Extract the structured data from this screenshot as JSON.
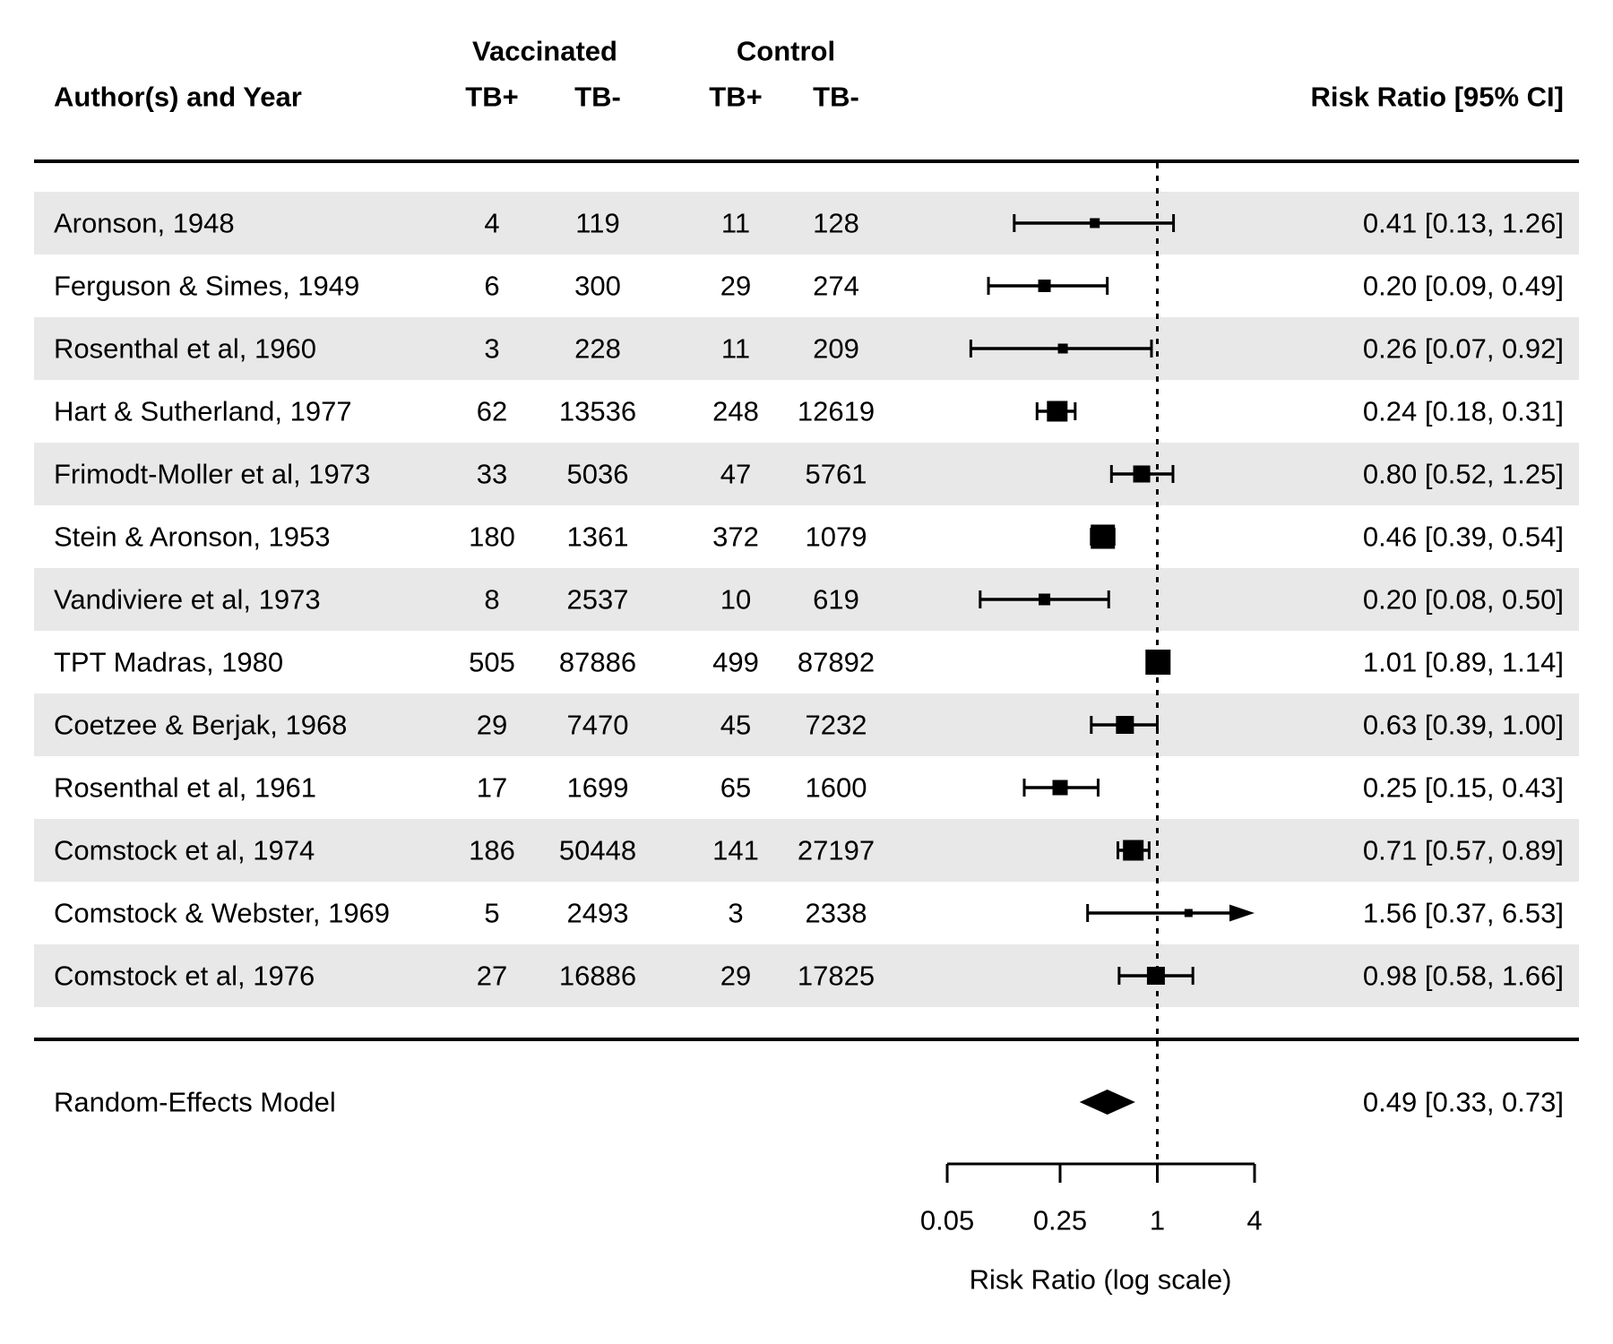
{
  "header": {
    "group1_label": "Vaccinated",
    "group2_label": "Control",
    "author_col_label": "Author(s) and Year",
    "sub_cols": [
      "TB+",
      "TB-",
      "TB+",
      "TB-"
    ],
    "rr_col_label": "Risk Ratio [95% CI]"
  },
  "summary": {
    "label": "Random-Effects Model",
    "annotation": "0.49 [0.33, 0.73]",
    "rr": 0.49,
    "ci_lo": 0.33,
    "ci_hi": 0.73
  },
  "axis": {
    "tick_labels": [
      "0.05",
      "0.25",
      "1",
      "4"
    ],
    "tick_values": [
      0.05,
      0.25,
      1,
      4
    ],
    "xlabel": "Risk Ratio (log scale)",
    "reference_value": 1,
    "scale": "log"
  },
  "colors": {
    "ink": "#000000",
    "stripe": "#e8e8e8",
    "background": "#ffffff"
  },
  "chart_data": {
    "type": "forest",
    "x_scale": "log",
    "xlabel": "Risk Ratio (log scale)",
    "axis_range": [
      0.05,
      4
    ],
    "reference_line": 1,
    "studies": [
      {
        "author": "Aronson, 1948",
        "vacc_tb_pos": "4",
        "vacc_tb_neg": "119",
        "ctrl_tb_pos": "11",
        "ctrl_tb_neg": "128",
        "rr": 0.41,
        "ci_lo": 0.13,
        "ci_hi": 1.26,
        "annotation": "0.41 [0.13, 1.26]",
        "marker_size": 11,
        "arrow": false
      },
      {
        "author": "Ferguson & Simes, 1949",
        "vacc_tb_pos": "6",
        "vacc_tb_neg": "300",
        "ctrl_tb_pos": "29",
        "ctrl_tb_neg": "274",
        "rr": 0.2,
        "ci_lo": 0.09,
        "ci_hi": 0.49,
        "annotation": "0.20 [0.09, 0.49]",
        "marker_size": 14,
        "arrow": false
      },
      {
        "author": "Rosenthal et al, 1960",
        "vacc_tb_pos": "3",
        "vacc_tb_neg": "228",
        "ctrl_tb_pos": "11",
        "ctrl_tb_neg": "209",
        "rr": 0.26,
        "ci_lo": 0.07,
        "ci_hi": 0.92,
        "annotation": "0.26 [0.07, 0.92]",
        "marker_size": 11,
        "arrow": false
      },
      {
        "author": "Hart & Sutherland, 1977",
        "vacc_tb_pos": "62",
        "vacc_tb_neg": "13536",
        "ctrl_tb_pos": "248",
        "ctrl_tb_neg": "12619",
        "rr": 0.24,
        "ci_lo": 0.18,
        "ci_hi": 0.31,
        "annotation": "0.24 [0.18, 0.31]",
        "marker_size": 23,
        "arrow": false
      },
      {
        "author": "Frimodt-Moller et al, 1973",
        "vacc_tb_pos": "33",
        "vacc_tb_neg": "5036",
        "ctrl_tb_pos": "47",
        "ctrl_tb_neg": "5761",
        "rr": 0.8,
        "ci_lo": 0.52,
        "ci_hi": 1.25,
        "annotation": "0.80 [0.52, 1.25]",
        "marker_size": 19,
        "arrow": false
      },
      {
        "author": "Stein & Aronson, 1953",
        "vacc_tb_pos": "180",
        "vacc_tb_neg": "1361",
        "ctrl_tb_pos": "372",
        "ctrl_tb_neg": "1079",
        "rr": 0.46,
        "ci_lo": 0.39,
        "ci_hi": 0.54,
        "annotation": "0.46 [0.39, 0.54]",
        "marker_size": 27,
        "arrow": false
      },
      {
        "author": "Vandiviere et al, 1973",
        "vacc_tb_pos": "8",
        "vacc_tb_neg": "2537",
        "ctrl_tb_pos": "10",
        "ctrl_tb_neg": "619",
        "rr": 0.2,
        "ci_lo": 0.08,
        "ci_hi": 0.5,
        "annotation": "0.20 [0.08, 0.50]",
        "marker_size": 13,
        "arrow": false
      },
      {
        "author": "TPT Madras, 1980",
        "vacc_tb_pos": "505",
        "vacc_tb_neg": "87886",
        "ctrl_tb_pos": "499",
        "ctrl_tb_neg": "87892",
        "rr": 1.01,
        "ci_lo": 0.89,
        "ci_hi": 1.14,
        "annotation": "1.01 [0.89, 1.14]",
        "marker_size": 28,
        "arrow": false
      },
      {
        "author": "Coetzee & Berjak, 1968",
        "vacc_tb_pos": "29",
        "vacc_tb_neg": "7470",
        "ctrl_tb_pos": "45",
        "ctrl_tb_neg": "7232",
        "rr": 0.63,
        "ci_lo": 0.39,
        "ci_hi": 1.0,
        "annotation": "0.63 [0.39, 1.00]",
        "marker_size": 20,
        "arrow": false
      },
      {
        "author": "Rosenthal et al, 1961",
        "vacc_tb_pos": "17",
        "vacc_tb_neg": "1699",
        "ctrl_tb_pos": "65",
        "ctrl_tb_neg": "1600",
        "rr": 0.25,
        "ci_lo": 0.15,
        "ci_hi": 0.43,
        "annotation": "0.25 [0.15, 0.43]",
        "marker_size": 17,
        "arrow": false
      },
      {
        "author": "Comstock et al, 1974",
        "vacc_tb_pos": "186",
        "vacc_tb_neg": "50448",
        "ctrl_tb_pos": "141",
        "ctrl_tb_neg": "27197",
        "rr": 0.71,
        "ci_lo": 0.57,
        "ci_hi": 0.89,
        "annotation": "0.71 [0.57, 0.89]",
        "marker_size": 23,
        "arrow": false
      },
      {
        "author": "Comstock & Webster, 1969",
        "vacc_tb_pos": "5",
        "vacc_tb_neg": "2493",
        "ctrl_tb_pos": "3",
        "ctrl_tb_neg": "2338",
        "rr": 1.56,
        "ci_lo": 0.37,
        "ci_hi": 6.53,
        "annotation": "1.56 [0.37, 6.53]",
        "marker_size": 9,
        "arrow": true
      },
      {
        "author": "Comstock et al, 1976",
        "vacc_tb_pos": "27",
        "vacc_tb_neg": "16886",
        "ctrl_tb_pos": "29",
        "ctrl_tb_neg": "17825",
        "rr": 0.98,
        "ci_lo": 0.58,
        "ci_hi": 1.66,
        "annotation": "0.98 [0.58, 1.66]",
        "marker_size": 20,
        "arrow": false
      }
    ],
    "summary": {
      "label": "Random-Effects Model",
      "rr": 0.49,
      "ci_lo": 0.33,
      "ci_hi": 0.73,
      "annotation": "0.49 [0.33, 0.73]"
    },
    "legend": null,
    "grid": false
  }
}
